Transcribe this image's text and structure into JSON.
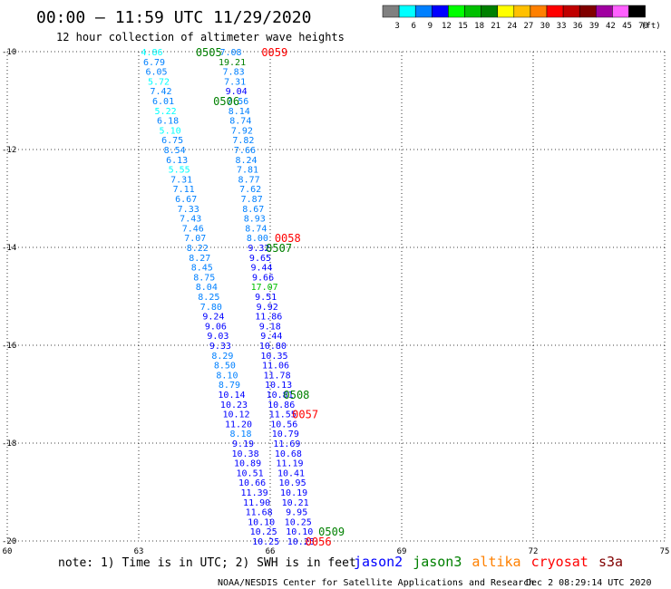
{
  "header": {
    "title": "00:00 – 11:59 UTC 11/29/2020",
    "subtitle": "12 hour collection of altimeter wave heights"
  },
  "legend_scale": {
    "ticks": [
      "3",
      "6",
      "9",
      "12",
      "15",
      "18",
      "21",
      "24",
      "27",
      "30",
      "33",
      "36",
      "39",
      "42",
      "45",
      "70"
    ],
    "unit": "(ft)",
    "colors": [
      "#808080",
      "#00ffff",
      "#0080ff",
      "#0000ff",
      "#00ff00",
      "#00c000",
      "#008000",
      "#ffff00",
      "#ffc000",
      "#ff8000",
      "#ff0000",
      "#c00000",
      "#800000",
      "#a000a0",
      "#ff60ff",
      "#000000"
    ]
  },
  "footer": {
    "note": "note: 1) Time is in UTC; 2) SWH is in feet",
    "satellites": [
      {
        "name": "jason2",
        "color": "#0000ff"
      },
      {
        "name": "jason3",
        "color": "#008000"
      },
      {
        "name": "altika",
        "color": "#ff8000"
      },
      {
        "name": "cryosat",
        "color": "#ff0000"
      },
      {
        "name": "s3a",
        "color": "#800000"
      }
    ],
    "credit": "NOAA/NESDIS Center for Satellite Applications and Research",
    "timestamp": "Dec  2 08:29:14 UTC 2020"
  },
  "chart_data": {
    "type": "scatter",
    "xlim": [
      60,
      75
    ],
    "ylim": [
      -20,
      -10
    ],
    "x_ticks": [
      "60",
      "63",
      "66",
      "69",
      "72",
      "75"
    ],
    "y_ticks": [
      "-10",
      "-12",
      "-14",
      "-16",
      "-18",
      "-20"
    ],
    "grid": true,
    "tracks": [
      {
        "pass": "0505",
        "satellite": "jason3",
        "lat": [
          -10.0,
          -10.2,
          -10.4,
          -10.6,
          -10.8,
          -11.0,
          -11.2,
          -11.4,
          -11.6,
          -11.8,
          -12.0,
          -12.2,
          -12.4,
          -12.6,
          -12.8,
          -13.0,
          -13.2,
          -13.4,
          -13.6,
          -13.8,
          -14.0,
          -14.2,
          -14.4,
          -14.6,
          -14.8,
          -15.0,
          -15.2,
          -15.4,
          -15.6,
          -15.8,
          -16.0,
          -16.2,
          -16.4,
          -16.6,
          -16.8,
          -17.0,
          -17.2,
          -17.4,
          -17.6,
          -17.8,
          -18.0,
          -18.2,
          -18.4,
          -18.6,
          -18.8,
          -19.0,
          -19.2,
          -19.4,
          -19.6,
          -19.8,
          -20.0
        ],
        "values": [
          "4.86",
          "6.79",
          "6.05",
          "5.72",
          "7.42",
          "6.01",
          "5.22",
          "6.18",
          "5.10",
          "6.75",
          "8.54",
          "6.13",
          "5.55",
          "7.31",
          "7.11",
          "6.67",
          "7.33",
          "7.43",
          "7.46",
          "7.07",
          "8.22",
          "8.27",
          "8.45",
          "8.75",
          "8.04",
          "8.25",
          "7.80",
          "9.24",
          "9.06",
          "9.03",
          "9.33",
          "8.29",
          "8.50",
          "8.10",
          "8.79",
          "10.14",
          "10.23",
          "10.12",
          "11.20",
          "8.18",
          "9.19",
          "10.38",
          "10.89",
          "10.51",
          "10.66",
          "11.39",
          "11.90",
          "11.68",
          "10.10",
          "10.25",
          "10.25"
        ]
      },
      {
        "pass": "0059",
        "satellite": "cryosat",
        "lat": [
          -10.0,
          -10.2,
          -10.4,
          -10.6,
          -10.8,
          -11.0,
          -11.2,
          -11.4,
          -11.6,
          -11.8,
          -12.0,
          -12.2,
          -12.4,
          -12.6,
          -12.8,
          -13.0,
          -13.2,
          -13.4,
          -13.6,
          -13.8,
          -14.0,
          -14.2,
          -14.4,
          -14.6,
          -14.8,
          -15.0,
          -15.2,
          -15.4,
          -15.6,
          -15.8,
          -16.0,
          -16.2,
          -16.4,
          -16.6,
          -16.8,
          -17.0,
          -17.2,
          -17.4,
          -17.6,
          -17.8,
          -18.0,
          -18.2,
          -18.4,
          -18.6,
          -18.8,
          -19.0,
          -19.2,
          -19.4,
          -19.6,
          -19.8,
          -20.0
        ],
        "values": [
          "7.08",
          "19.21",
          "7.83",
          "7.31",
          "9.04",
          "7.56",
          "8.14",
          "8.74",
          "7.92",
          "7.82",
          "7.66",
          "8.24",
          "7.81",
          "8.77",
          "7.62",
          "7.87",
          "8.67",
          "8.93",
          "8.74",
          "8.00",
          "9.32",
          "9.65",
          "9.44",
          "9.66",
          "17.07",
          "9.51",
          "9.92",
          "11.86",
          "9.18",
          "9.44",
          "10.80",
          "10.35",
          "11.06",
          "11.78",
          "10.13",
          "10.81",
          "10.86",
          "11.55",
          "10.56",
          "10.79",
          "11.69",
          "10.68",
          "11.19",
          "10.41",
          "10.95",
          "10.19",
          "10.21",
          "9.95",
          "10.25",
          "10.10",
          "10.25"
        ]
      }
    ],
    "annotations": [
      {
        "text": "0505",
        "color": "#008000",
        "lat": -10.0,
        "lon": 64.3
      },
      {
        "text": "0506",
        "color": "#008000",
        "lat": -11.0,
        "lon": 64.7
      },
      {
        "text": "0507",
        "color": "#008000",
        "lat": -14.0,
        "lon": 65.9
      },
      {
        "text": "0508",
        "color": "#008000",
        "lat": -17.0,
        "lon": 66.3
      },
      {
        "text": "0509",
        "color": "#008000",
        "lat": -19.8,
        "lon": 67.1
      },
      {
        "text": "0059",
        "color": "#ff0000",
        "lat": -10.0,
        "lon": 65.8
      },
      {
        "text": "0058",
        "color": "#ff0000",
        "lat": -13.8,
        "lon": 66.1
      },
      {
        "text": "0057",
        "color": "#ff0000",
        "lat": -17.4,
        "lon": 66.5
      },
      {
        "text": "0056",
        "color": "#ff0000",
        "lat": -20.0,
        "lon": 66.8
      }
    ]
  }
}
